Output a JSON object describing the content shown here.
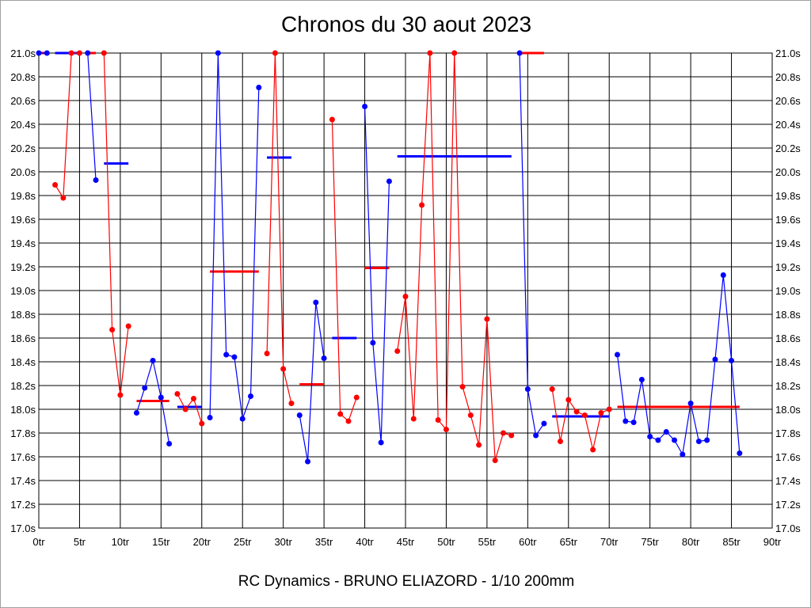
{
  "chart_data": {
    "type": "line",
    "title": "Chronos du 30 aout 2023",
    "footer": "RC Dynamics - BRUNO ELIAZORD - 1/10 200mm",
    "xlabel": "",
    "ylabel": "",
    "xlim": [
      0,
      90
    ],
    "ylim": [
      17.0,
      21.0
    ],
    "grid": true,
    "x_ticks": [
      "0tr",
      "5tr",
      "10tr",
      "15tr",
      "20tr",
      "25tr",
      "30tr",
      "35tr",
      "40tr",
      "45tr",
      "50tr",
      "55tr",
      "60tr",
      "65tr",
      "70tr",
      "75tr",
      "80tr",
      "85tr",
      "90tr"
    ],
    "y_ticks": [
      "17.0s",
      "17.2s",
      "17.4s",
      "17.6s",
      "17.8s",
      "18.0s",
      "18.2s",
      "18.4s",
      "18.6s",
      "18.8s",
      "19.0s",
      "19.2s",
      "19.4s",
      "19.6s",
      "19.8s",
      "20.0s",
      "20.2s",
      "20.4s",
      "20.6s",
      "20.8s",
      "21.0s"
    ],
    "colors": {
      "red": "#ff0000",
      "blue": "#0000ff",
      "grid": "#000000"
    },
    "groups": [
      {
        "color": "blue",
        "start": 0,
        "values": [
          21.0,
          21.0
        ],
        "average": 21.0
      },
      {
        "color": "red",
        "start": 2,
        "values": [
          19.89,
          19.78,
          21.0,
          21.0
        ],
        "average": 21.0
      },
      {
        "color": "blue",
        "start": 6,
        "values": [
          21.0,
          19.93
        ],
        "average": 21.0
      },
      {
        "color": "red",
        "start": 8,
        "values": [
          21.0,
          18.67,
          18.12,
          18.7
        ],
        "average": 20.07
      },
      {
        "color": "blue",
        "start": 12,
        "values": [
          17.97,
          18.18,
          18.41,
          18.1,
          17.71
        ],
        "average": 18.07
      },
      {
        "color": "red",
        "start": 17,
        "values": [
          18.13,
          18.0,
          18.09,
          17.88
        ],
        "average": 18.02
      },
      {
        "color": "blue",
        "start": 21,
        "values": [
          17.93,
          21.0,
          18.46,
          18.44,
          17.92,
          18.11,
          20.71
        ],
        "average": 19.16
      },
      {
        "color": "red",
        "start": 28,
        "values": [
          18.47,
          21.0,
          18.34,
          18.05
        ],
        "average": 20.12
      },
      {
        "color": "blue",
        "start": 32,
        "values": [
          17.95,
          17.56,
          18.9,
          18.43
        ],
        "average": 18.21
      },
      {
        "color": "red",
        "start": 36,
        "values": [
          20.44,
          17.96,
          17.9,
          18.1
        ],
        "average": 18.6
      },
      {
        "color": "blue",
        "start": 40,
        "values": [
          20.55,
          18.56,
          17.72,
          19.92
        ],
        "average": 19.19
      },
      {
        "color": "red",
        "start": 44,
        "values": [
          18.49,
          18.95,
          17.92,
          19.72,
          21.0,
          17.91,
          17.83,
          21.0,
          18.19,
          17.95,
          17.7,
          18.76,
          17.57,
          17.8,
          17.78
        ],
        "average": 20.13
      },
      {
        "color": "blue",
        "start": 59,
        "values": [
          21.0,
          18.17,
          17.78,
          17.88
        ],
        "average": 21.0
      },
      {
        "color": "red",
        "start": 63,
        "values": [
          18.17,
          17.73,
          18.08,
          17.98,
          17.95,
          17.66,
          17.97,
          18.0
        ],
        "average": 17.94
      },
      {
        "color": "blue",
        "start": 71,
        "values": [
          18.46,
          17.9,
          17.89,
          18.25,
          17.77,
          17.74,
          17.81,
          17.74,
          17.62,
          18.05,
          17.73,
          17.74,
          18.42,
          19.13,
          18.41,
          17.63
        ],
        "average": 18.02
      }
    ]
  }
}
